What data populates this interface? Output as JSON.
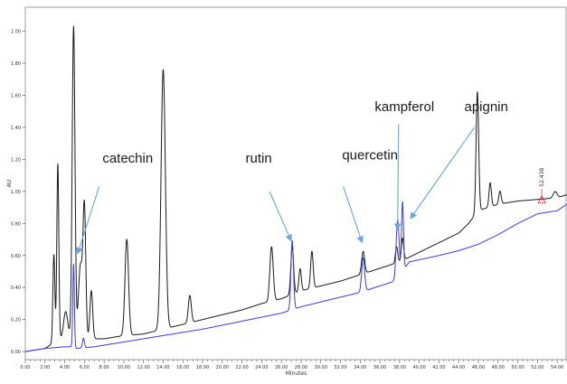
{
  "chart_data": {
    "type": "line",
    "xlabel": "Minutes",
    "ylabel": "AU",
    "xlim": [
      0,
      55
    ],
    "ylim": [
      -0.05,
      2.15
    ],
    "x_ticks": [
      "0.00",
      "2.00",
      "4.00",
      "6.00",
      "8.00",
      "10.00",
      "12.00",
      "14.00",
      "16.00",
      "18.00",
      "20.00",
      "22.00",
      "24.00",
      "26.00",
      "28.00",
      "30.00",
      "32.00",
      "34.00",
      "36.00",
      "38.00",
      "40.00",
      "42.00",
      "44.00",
      "46.00",
      "48.00",
      "50.00",
      "52.00",
      "54.00"
    ],
    "y_ticks": [
      "0.00",
      "0.20",
      "0.40",
      "0.60",
      "0.80",
      "1.00",
      "1.20",
      "1.40",
      "1.60",
      "1.80",
      "2.00"
    ],
    "series": [
      {
        "color": "#1a1a1a",
        "baseline": [
          [
            0,
            0.0
          ],
          [
            2,
            0.02
          ],
          [
            3,
            0.06
          ],
          [
            4,
            0.1
          ],
          [
            5,
            0.1
          ],
          [
            6,
            0.08
          ],
          [
            8,
            0.08
          ],
          [
            10,
            0.1
          ],
          [
            12,
            0.11
          ],
          [
            14,
            0.14
          ],
          [
            16,
            0.17
          ],
          [
            18,
            0.2
          ],
          [
            20,
            0.23
          ],
          [
            22,
            0.26
          ],
          [
            24,
            0.3
          ],
          [
            26,
            0.33
          ],
          [
            28,
            0.38
          ],
          [
            30,
            0.41
          ],
          [
            32,
            0.44
          ],
          [
            34,
            0.48
          ],
          [
            36,
            0.52
          ],
          [
            38,
            0.56
          ],
          [
            40,
            0.62
          ],
          [
            42,
            0.68
          ],
          [
            44,
            0.74
          ],
          [
            45,
            0.8
          ],
          [
            46,
            0.88
          ],
          [
            48,
            0.92
          ],
          [
            50,
            0.94
          ],
          [
            52,
            0.95
          ],
          [
            54,
            0.96
          ],
          [
            55,
            0.98
          ]
        ],
        "peaks": [
          {
            "x": 2.9,
            "height": 0.55,
            "width": 0.1
          },
          {
            "x": 3.3,
            "height": 1.1,
            "width": 0.1
          },
          {
            "x": 4.1,
            "height": 0.15,
            "width": 0.2
          },
          {
            "x": 4.9,
            "height": 1.93,
            "width": 0.14
          },
          {
            "x": 5.6,
            "height": 0.45,
            "width": 0.2
          },
          {
            "x": 6.0,
            "height": 0.8,
            "width": 0.14
          },
          {
            "x": 6.7,
            "height": 0.3,
            "width": 0.14
          },
          {
            "x": 10.3,
            "height": 0.6,
            "width": 0.18
          },
          {
            "x": 14.0,
            "height": 1.62,
            "width": 0.22
          },
          {
            "x": 16.7,
            "height": 0.17,
            "width": 0.15
          },
          {
            "x": 25.0,
            "height": 0.34,
            "width": 0.17
          },
          {
            "x": 27.1,
            "height": 0.3,
            "width": 0.14
          },
          {
            "x": 27.9,
            "height": 0.14,
            "width": 0.12
          },
          {
            "x": 29.1,
            "height": 0.23,
            "width": 0.13
          },
          {
            "x": 34.3,
            "height": 0.14,
            "width": 0.15
          },
          {
            "x": 37.7,
            "height": 0.1,
            "width": 0.12
          },
          {
            "x": 38.3,
            "height": 0.14,
            "width": 0.12
          },
          {
            "x": 45.9,
            "height": 0.75,
            "width": 0.13
          },
          {
            "x": 47.2,
            "height": 0.15,
            "width": 0.12
          },
          {
            "x": 48.2,
            "height": 0.08,
            "width": 0.12
          },
          {
            "x": 53.8,
            "height": 0.04,
            "width": 0.2
          }
        ]
      },
      {
        "color": "#3a3ad6",
        "baseline": [
          [
            0,
            0.0
          ],
          [
            2,
            0.02
          ],
          [
            4,
            0.03
          ],
          [
            4.6,
            0.03
          ],
          [
            5.2,
            0.02
          ],
          [
            7,
            0.03
          ],
          [
            10,
            0.06
          ],
          [
            14,
            0.1
          ],
          [
            18,
            0.14
          ],
          [
            22,
            0.19
          ],
          [
            26,
            0.24
          ],
          [
            28,
            0.28
          ],
          [
            30,
            0.31
          ],
          [
            32,
            0.34
          ],
          [
            34,
            0.37
          ],
          [
            36,
            0.41
          ],
          [
            37.5,
            0.44
          ],
          [
            39,
            0.56
          ],
          [
            42,
            0.6
          ],
          [
            44,
            0.63
          ],
          [
            46,
            0.67
          ],
          [
            48,
            0.73
          ],
          [
            50,
            0.8
          ],
          [
            52,
            0.86
          ],
          [
            54,
            0.88
          ],
          [
            55,
            0.92
          ]
        ],
        "peaks": [
          {
            "x": 4.9,
            "height": 0.52,
            "width": 0.08
          },
          {
            "x": 5.9,
            "height": 0.06,
            "width": 0.1
          },
          {
            "x": 27.1,
            "height": 0.43,
            "width": 0.13
          },
          {
            "x": 34.3,
            "height": 0.21,
            "width": 0.15
          },
          {
            "x": 37.8,
            "height": 0.36,
            "width": 0.15
          },
          {
            "x": 38.3,
            "height": 0.43,
            "width": 0.1
          }
        ]
      }
    ],
    "annotations": [
      {
        "text": "catechin",
        "label_x": 10.4,
        "label_y": 1.18,
        "arrow_from": [
          7.5,
          1.03
        ],
        "arrow_to": [
          5.3,
          0.61
        ]
      },
      {
        "text": "rutin",
        "label_x": 23.7,
        "label_y": 1.18,
        "arrow_from": [
          24.8,
          1.0
        ],
        "arrow_to": [
          27.0,
          0.69
        ]
      },
      {
        "text": "quercetin",
        "label_x": 35.0,
        "label_y": 1.2,
        "arrow_from": [
          32.3,
          1.03
        ],
        "arrow_to": [
          34.2,
          0.68
        ]
      },
      {
        "text": "kampferol",
        "label_x": 38.5,
        "label_y": 1.5,
        "arrow_from": [
          37.9,
          1.42
        ],
        "arrow_to": [
          37.8,
          0.76
        ]
      },
      {
        "text": "apignin",
        "label_x": 46.8,
        "label_y": 1.5,
        "arrow_from": [
          45.6,
          1.4
        ],
        "arrow_to": [
          39.1,
          0.83
        ]
      }
    ],
    "marker": {
      "label": "52.438",
      "x": 52.438,
      "y": 0.95,
      "color": "#e02020"
    },
    "annotation_arrow_color": "#6aa6d8",
    "grid": false
  }
}
